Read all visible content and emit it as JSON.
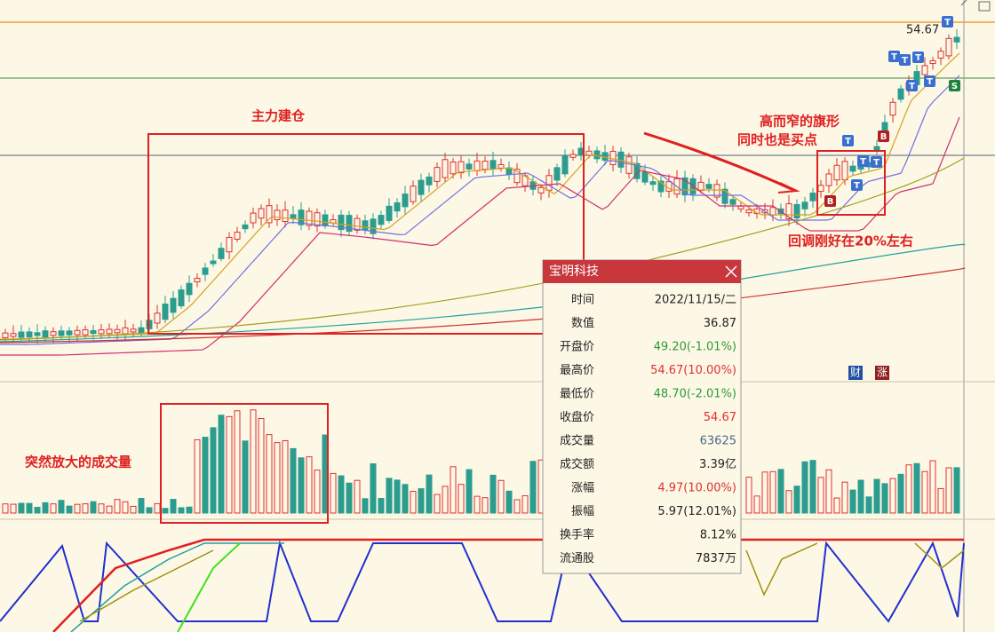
{
  "annotations": {
    "accumulation": "主力建仓",
    "flag_line1": "高而窄的旗形",
    "flag_line2": "同时也是买点",
    "pullback": "回调刚好在20%左右",
    "volume": "突然放大的成交量"
  },
  "price_label": "54.67",
  "signals": {
    "top": "T",
    "buy": "B",
    "sell": "S"
  },
  "badges": [
    "财",
    "涨"
  ],
  "popup": {
    "title": "宝明科技",
    "rows": [
      {
        "label": "时间",
        "value": "2022/11/15/二"
      },
      {
        "label": "数值",
        "value": "36.87"
      },
      {
        "label": "开盘价",
        "value": "49.20(-1.01%)"
      },
      {
        "label": "最高价",
        "value": "54.67(10.00%)"
      },
      {
        "label": "最低价",
        "value": "48.70(-2.01%)"
      },
      {
        "label": "收盘价",
        "value": "54.67"
      },
      {
        "label": "成交量",
        "value": "63625"
      },
      {
        "label": "成交额",
        "value": "3.39亿"
      },
      {
        "label": "涨幅",
        "value": "4.97(10.00%)"
      },
      {
        "label": "振幅",
        "value": "5.97(12.01%)"
      },
      {
        "label": "换手率",
        "value": "8.12%"
      },
      {
        "label": "流通股",
        "value": "7837万"
      }
    ]
  }
}
